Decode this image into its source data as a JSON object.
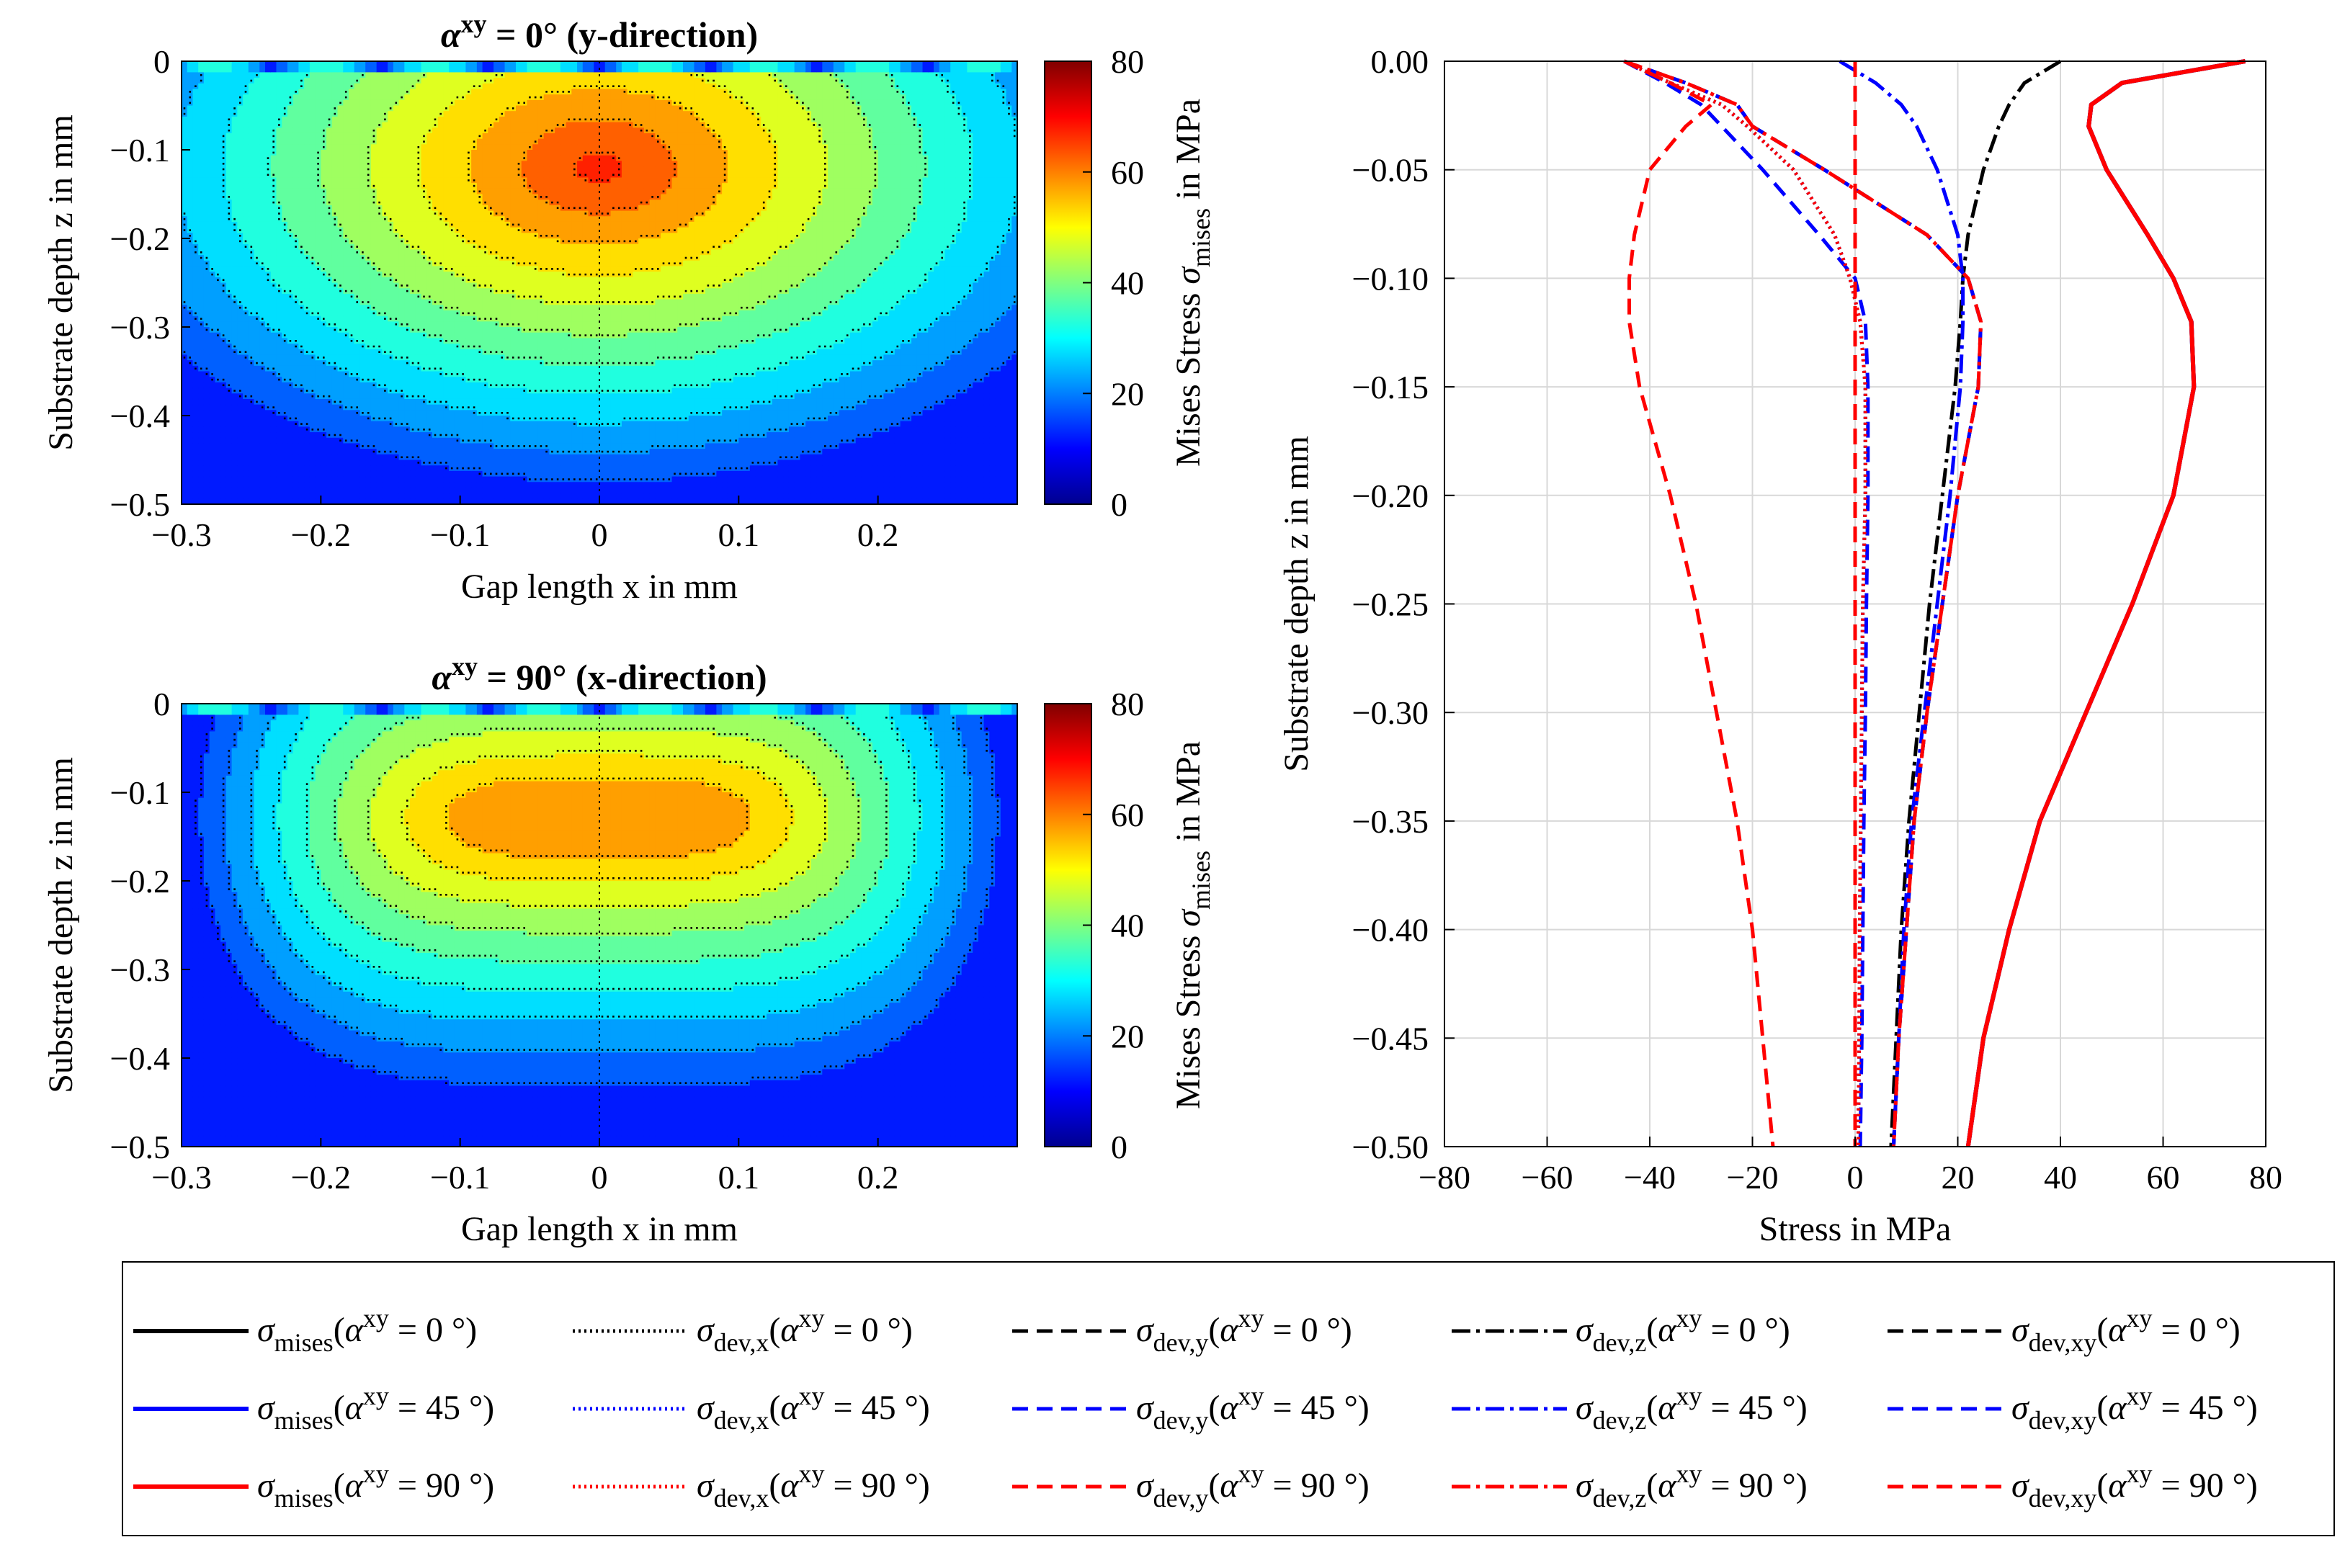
{
  "chart_data": [
    {
      "type": "heatmap",
      "title": "α^xy = 0° (y-direction)",
      "xlabel": "Gap length x in mm",
      "ylabel": "Substrate depth z in mm",
      "xlim": [
        -0.3,
        0.3
      ],
      "ylim": [
        -0.5,
        0
      ],
      "xticks": [
        "−0.3",
        "−0.2",
        "−0.1",
        "0",
        "0.1",
        "0.2"
      ],
      "yticks": [
        "0",
        "−0.1",
        "−0.2",
        "−0.3",
        "−0.4",
        "−0.5"
      ],
      "colorbar": {
        "label": "Mises Stress σ_mises in MPa",
        "ticks": [
          "0",
          "20",
          "40",
          "60",
          "80"
        ],
        "range": [
          0,
          80
        ],
        "colormap": "jet"
      },
      "contour_levels_MPa": [
        15,
        20,
        25,
        30,
        35,
        40,
        45,
        50,
        55,
        60,
        65
      ],
      "peak": {
        "x": 0,
        "z": -0.12,
        "value": 67
      },
      "shape": "oval"
    },
    {
      "type": "heatmap",
      "title": "α^xy = 90° (x-direction)",
      "xlabel": "Gap length x in mm",
      "ylabel": "Substrate depth z in mm",
      "xlim": [
        -0.3,
        0.3
      ],
      "ylim": [
        -0.5,
        0
      ],
      "xticks": [
        "−0.3",
        "−0.2",
        "−0.1",
        "0",
        "0.1",
        "0.2"
      ],
      "yticks": [
        "0",
        "−0.1",
        "−0.2",
        "−0.3",
        "−0.4",
        "−0.5"
      ],
      "colorbar": {
        "label": "Mises Stress σ_mises in MPa",
        "ticks": [
          "0",
          "20",
          "40",
          "60",
          "80"
        ],
        "range": [
          0,
          80
        ],
        "colormap": "jet"
      },
      "contour_levels_MPa": [
        15,
        20,
        25,
        30,
        35,
        40,
        45,
        50,
        55
      ],
      "peak": {
        "x": 0,
        "z": -0.13,
        "value": 59
      },
      "shape": "plateau"
    },
    {
      "type": "line",
      "xlabel": "Stress in MPa",
      "ylabel": "Substrate depth z in mm",
      "xlim": [
        -80,
        80
      ],
      "ylim": [
        -0.5,
        0
      ],
      "xticks": [
        "−80",
        "−60",
        "−40",
        "−20",
        "0",
        "20",
        "40",
        "60",
        "80"
      ],
      "yticks": [
        "0.00",
        "−0.05",
        "−0.10",
        "−0.15",
        "−0.20",
        "−0.25",
        "−0.30",
        "−0.35",
        "−0.40",
        "−0.45",
        "−0.50"
      ],
      "grid": true,
      "z": [
        0,
        -0.01,
        -0.02,
        -0.03,
        -0.05,
        -0.08,
        -0.1,
        -0.12,
        -0.15,
        -0.2,
        -0.25,
        -0.3,
        -0.35,
        -0.4,
        -0.45,
        -0.5
      ],
      "series": [
        {
          "name": "σ_mises(α^xy = 0 °)",
          "color": "#000000",
          "dash": "solid",
          "values": [
            76,
            52,
            46,
            45.5,
            49,
            57,
            62,
            65.5,
            66,
            62,
            54,
            45,
            36,
            30,
            25,
            22
          ]
        },
        {
          "name": "σ_dev,x(α^xy = 0 °)",
          "color": "#000000",
          "dash": "dotted",
          "values": [
            -45,
            -36,
            -26,
            -21,
            -12,
            -4,
            -1,
            1,
            2,
            2,
            1.5,
            1.3,
            1.1,
            0.9,
            0.8,
            0.6
          ]
        },
        {
          "name": "σ_dev,y(α^xy = 0 °)",
          "color": "#000000",
          "dash": "dashed",
          "values": [
            -45,
            -33,
            -23,
            -20,
            -6,
            14,
            22,
            24.5,
            24,
            20,
            17,
            14,
            11.5,
            10,
            8.5,
            7.5
          ]
        },
        {
          "name": "σ_dev,z(α^xy = 0 °)",
          "color": "#000000",
          "dash": "dashdot",
          "values": [
            40,
            33,
            30,
            28,
            25,
            22,
            21,
            20.5,
            19.5,
            17,
            14.5,
            12.5,
            10.5,
            9,
            8,
            7
          ]
        },
        {
          "name": "σ_dev,xy(α^xy = 0 °)",
          "color": "#000000",
          "dash": "dashed",
          "values": [
            0,
            0,
            0,
            0,
            0,
            0,
            0,
            0,
            0,
            0,
            0,
            0,
            0,
            0,
            0,
            0
          ]
        },
        {
          "name": "σ_mises(α^xy = 45 °)",
          "color": "#0000ff",
          "dash": "solid",
          "values": [
            76,
            52,
            46,
            45.5,
            49,
            57,
            62,
            65.5,
            66,
            62,
            54,
            45,
            36,
            30,
            25,
            22
          ]
        },
        {
          "name": "σ_dev,x(α^xy = 45 °)",
          "color": "#0000ff",
          "dash": "dotted",
          "values": [
            -45,
            -36,
            -26,
            -21,
            -12,
            -4,
            -1,
            1,
            2,
            2,
            1.5,
            1.3,
            1.1,
            0.9,
            0.8,
            0.6
          ]
        },
        {
          "name": "σ_dev,y(α^xy = 45 °)",
          "color": "#0000ff",
          "dash": "dashed",
          "values": [
            -45,
            -33,
            -23,
            -20,
            -6,
            14,
            22,
            24.5,
            24,
            20,
            17,
            14,
            11.5,
            10,
            8.5,
            7.5
          ]
        },
        {
          "name": "σ_dev,z(α^xy = 45 °)",
          "color": "#0000ff",
          "dash": "dashdot",
          "values": [
            -3,
            4,
            9,
            12,
            16,
            20,
            21,
            21,
            20.5,
            18.5,
            16,
            13.5,
            11,
            9.5,
            8.5,
            7.5
          ]
        },
        {
          "name": "σ_dev,xy(α^xy = 45 °)",
          "color": "#0000ff",
          "dash": "dashed",
          "values": [
            -45,
            -37,
            -30,
            -26,
            -18,
            -7,
            0,
            2,
            2.5,
            2.5,
            2.2,
            2,
            1.7,
            1.5,
            1.3,
            1
          ]
        },
        {
          "name": "σ_mises(α^xy = 90 °)",
          "color": "#ff0000",
          "dash": "solid",
          "values": [
            76,
            52,
            46,
            45.5,
            49,
            57,
            62,
            65.5,
            66,
            62,
            54,
            45,
            36,
            30,
            25,
            22
          ]
        },
        {
          "name": "σ_dev,x(α^xy = 90 °)",
          "color": "#ff0000",
          "dash": "dotted",
          "values": [
            -45,
            -36,
            -26,
            -21,
            -12,
            -4,
            -1,
            1,
            2,
            2,
            1.5,
            1.3,
            1.1,
            0.9,
            0.8,
            0.6
          ]
        },
        {
          "name": "σ_dev,y(α^xy = 90 °)",
          "color": "#ff0000",
          "dash": "dashed",
          "values": [
            -45,
            -36,
            -28,
            -33,
            -40,
            -43,
            -44,
            -44,
            -42,
            -36,
            -31,
            -27,
            -23,
            -20,
            -18,
            -16
          ]
        },
        {
          "name": "σ_dev,z(α^xy = 90 °)",
          "color": "#ff0000",
          "dash": "dashdot",
          "values": [
            -45,
            -33,
            -23,
            -20,
            -6,
            14,
            22,
            24.5,
            24,
            20,
            17,
            14,
            11.5,
            10,
            8.5,
            7.5
          ]
        },
        {
          "name": "σ_dev,xy(α^xy = 90 °)",
          "color": "#ff0000",
          "dash": "dashed",
          "values": [
            0,
            0,
            0,
            0,
            0,
            0,
            0,
            0,
            0,
            0,
            0,
            0,
            0,
            0,
            0,
            0
          ]
        }
      ]
    }
  ]
}
